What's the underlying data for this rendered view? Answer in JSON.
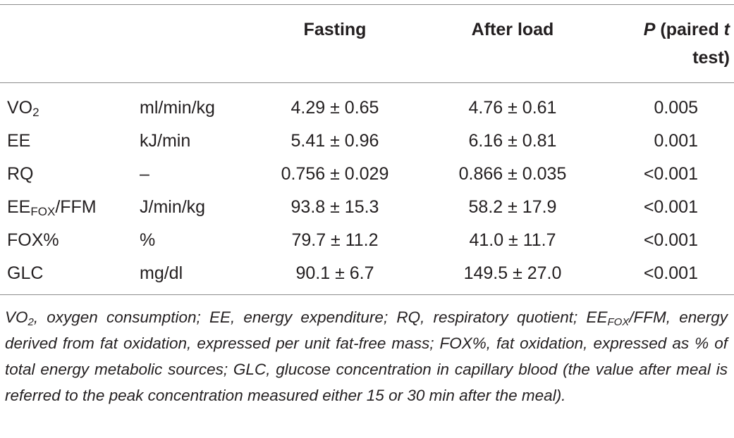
{
  "table": {
    "headers": {
      "fasting": "Fasting",
      "after_load": "After load",
      "p_italic": "P",
      "p_rest_1": " (paired ",
      "p_italic_t": "t",
      "p_line2": "test)"
    },
    "rows": [
      {
        "name": "VO",
        "sub": "2",
        "name_after": "",
        "unit": "ml/min/kg",
        "fasting": "4.29 ± 0.65",
        "after": "4.76 ± 0.61",
        "p": "0.005"
      },
      {
        "name": "EE",
        "sub": "",
        "name_after": "",
        "unit": "kJ/min",
        "fasting": "5.41 ± 0.96",
        "after": "6.16 ± 0.81",
        "p": "0.001"
      },
      {
        "name": "RQ",
        "sub": "",
        "name_after": "",
        "unit": "–",
        "fasting": "0.756 ± 0.029",
        "after": "0.866 ± 0.035",
        "p": "<0.001"
      },
      {
        "name": "EE",
        "sub": "FOX",
        "name_after": "/FFM",
        "unit": "J/min/kg",
        "fasting": "93.8 ± 15.3",
        "after": "58.2 ± 17.9",
        "p": "<0.001"
      },
      {
        "name": "FOX%",
        "sub": "",
        "name_after": "",
        "unit": "%",
        "fasting": "79.7 ± 11.2",
        "after": "41.0 ± 11.7",
        "p": "<0.001"
      },
      {
        "name": "GLC",
        "sub": "",
        "name_after": "",
        "unit": "mg/dl",
        "fasting": "90.1 ± 6.7",
        "after": "149.5 ± 27.0",
        "p": "<0.001"
      }
    ]
  },
  "footnote": {
    "vo": "VO",
    "vo_sub": "2",
    "part1": ", oxygen consumption; EE, energy expenditure; RQ, respiratory quotient; EE",
    "fox_sub": "FOX",
    "part2": "/FFM, energy derived from fat oxidation, expressed per unit fat-free mass; FOX%, fat oxidation, expressed as % of total energy metabolic sources; GLC, glucose concentration in capillary blood (the value after meal is referred to the peak concentration measured either 15 or 30 min after the meal)."
  }
}
